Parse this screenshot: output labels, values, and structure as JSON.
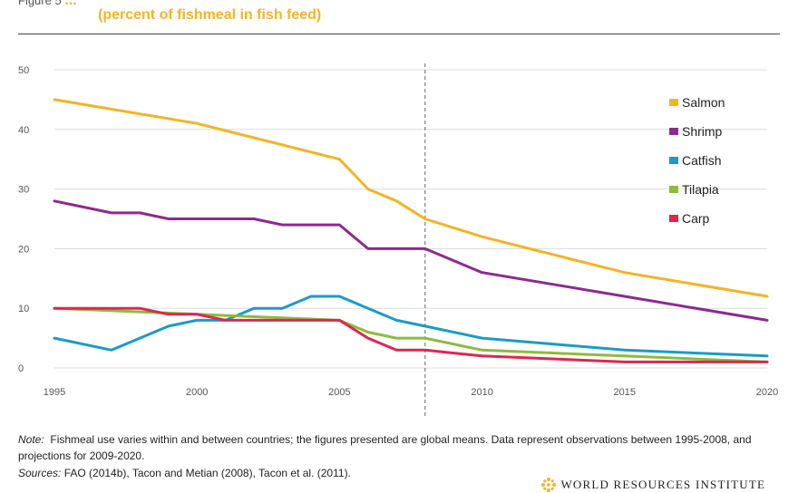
{
  "header": {
    "figure_label": "Figure 5",
    "title_fragment": "...",
    "subtitle": "(percent of fishmeal in fish feed)"
  },
  "chart_data": {
    "type": "line",
    "title": "(percent of fishmeal in fish feed)",
    "xlabel": "",
    "ylabel": "",
    "xlim": [
      1995,
      2020
    ],
    "ylim": [
      0,
      50
    ],
    "x_ticks": [
      1995,
      2000,
      2005,
      2010,
      2015,
      2020
    ],
    "y_ticks": [
      0,
      10,
      20,
      30,
      40,
      50
    ],
    "grid": "horizontal",
    "annotation": {
      "type": "vertical-dashed-line",
      "x": 2008
    },
    "legend_position": "right",
    "series": [
      {
        "name": "Salmon",
        "color": "#f5b324",
        "x": [
          1995,
          2000,
          2005,
          2006,
          2007,
          2008,
          2010,
          2015,
          2020
        ],
        "values": [
          45,
          41,
          35,
          30,
          28,
          25,
          22,
          16,
          12
        ]
      },
      {
        "name": "Shrimp",
        "color": "#8e2a8c",
        "x": [
          1995,
          1997,
          1998,
          1999,
          2000,
          2001,
          2002,
          2003,
          2004,
          2005,
          2006,
          2007,
          2008,
          2010,
          2015,
          2020
        ],
        "values": [
          28,
          26,
          26,
          25,
          25,
          25,
          25,
          24,
          24,
          24,
          20,
          20,
          20,
          16,
          12,
          8
        ]
      },
      {
        "name": "Catfish",
        "color": "#1a9bc9",
        "x": [
          1995,
          1997,
          1998,
          1999,
          2000,
          2001,
          2002,
          2003,
          2004,
          2005,
          2006,
          2007,
          2008,
          2010,
          2015,
          2020
        ],
        "values": [
          5,
          3,
          5,
          7,
          8,
          8,
          10,
          10,
          12,
          12,
          10,
          8,
          7,
          5,
          3,
          2
        ]
      },
      {
        "name": "Tilapia",
        "color": "#8dbb3d",
        "x": [
          1995,
          2000,
          2005,
          2006,
          2007,
          2008,
          2010,
          2015,
          2020
        ],
        "values": [
          10,
          9,
          8,
          6,
          5,
          5,
          3,
          2,
          1
        ]
      },
      {
        "name": "Carp",
        "color": "#e0264f",
        "x": [
          1995,
          1998,
          1999,
          2000,
          2001,
          2002,
          2005,
          2006,
          2007,
          2008,
          2010,
          2015,
          2020
        ],
        "values": [
          10,
          10,
          9,
          9,
          8,
          8,
          8,
          5,
          3,
          3,
          2,
          1,
          1
        ]
      }
    ]
  },
  "footer": {
    "note_label": "Note:",
    "note_text": "Fishmeal use varies within and between countries; the figures presented are global means. Data represent observations between 1995-2008, and projections for 2009-2020.",
    "sources_label": "Sources:",
    "sources_text": "FAO (2014b), Tacon and Metian (2008), Tacon et al. (2011).",
    "logo_text": "WORLD RESOURCES INSTITUTE"
  }
}
